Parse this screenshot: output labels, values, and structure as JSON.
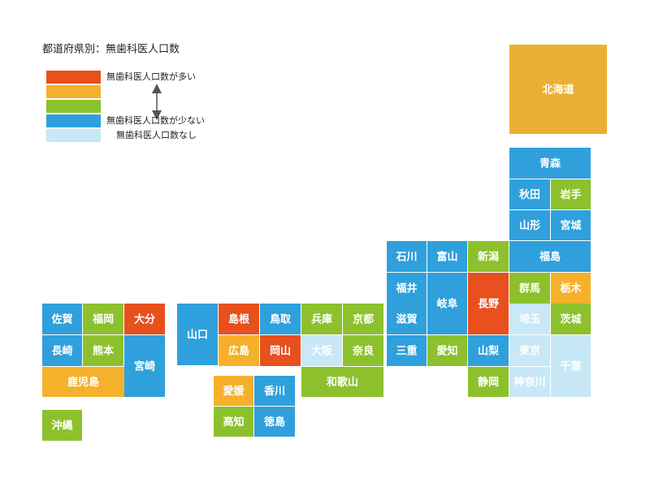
{
  "title": "都道府県別：無歯科医人口数",
  "legend": [
    {
      "label": "無歯科医人口数が多い",
      "color": "#e8501e"
    },
    {
      "label": null,
      "color": "#f5b12b"
    },
    {
      "label": null,
      "color": "#8cc12d"
    },
    {
      "label": "無歯科医人口数が少ない",
      "color": "#2fa0dc"
    },
    {
      "label": "無歯科医人口数なし",
      "color": "#c8e8f8"
    }
  ],
  "prefectures": [
    {
      "name": "北海道",
      "color": "#ebb033"
    },
    {
      "name": "青森",
      "color": "#2fa0dc"
    },
    {
      "name": "秋田",
      "color": "#2fa0dc"
    },
    {
      "name": "岩手",
      "color": "#8cc12d"
    },
    {
      "name": "山形",
      "color": "#2fa0dc"
    },
    {
      "name": "宮城",
      "color": "#2fa0dc"
    },
    {
      "name": "石川",
      "color": "#2fa0dc"
    },
    {
      "name": "富山",
      "color": "#2fa0dc"
    },
    {
      "name": "新潟",
      "color": "#8cc12d"
    },
    {
      "name": "福島",
      "color": "#2fa0dc"
    },
    {
      "name": "福井",
      "color": "#2fa0dc"
    },
    {
      "name": "岐阜",
      "color": "#2fa0dc"
    },
    {
      "name": "長野",
      "color": "#e8501e"
    },
    {
      "name": "群馬",
      "color": "#8cc12d"
    },
    {
      "name": "栃木",
      "color": "#f5b12b"
    },
    {
      "name": "佐賀",
      "color": "#2fa0dc"
    },
    {
      "name": "福岡",
      "color": "#8cc12d"
    },
    {
      "name": "大分",
      "color": "#e8501e"
    },
    {
      "name": "山口",
      "color": "#2fa0dc"
    },
    {
      "name": "島根",
      "color": "#e8501e"
    },
    {
      "name": "鳥取",
      "color": "#2fa0dc"
    },
    {
      "name": "兵庫",
      "color": "#8cc12d"
    },
    {
      "name": "京都",
      "color": "#8cc12d"
    },
    {
      "name": "滋賀",
      "color": "#2fa0dc"
    },
    {
      "name": "埼玉",
      "color": "#c8e8f8"
    },
    {
      "name": "茨城",
      "color": "#8cc12d"
    },
    {
      "name": "長崎",
      "color": "#2fa0dc"
    },
    {
      "name": "熊本",
      "color": "#8cc12d"
    },
    {
      "name": "宮崎",
      "color": "#2fa0dc"
    },
    {
      "name": "広島",
      "color": "#f5b12b"
    },
    {
      "name": "岡山",
      "color": "#e8501e"
    },
    {
      "name": "大阪",
      "color": "#c8e8f8"
    },
    {
      "name": "奈良",
      "color": "#8cc12d"
    },
    {
      "name": "三重",
      "color": "#2fa0dc"
    },
    {
      "name": "愛知",
      "color": "#8cc12d"
    },
    {
      "name": "山梨",
      "color": "#2fa0dc"
    },
    {
      "name": "東京",
      "color": "#c8e8f8"
    },
    {
      "name": "千葉",
      "color": "#c8e8f8"
    },
    {
      "name": "鹿児島",
      "color": "#f5b12b"
    },
    {
      "name": "和歌山",
      "color": "#8cc12d"
    },
    {
      "name": "静岡",
      "color": "#8cc12d"
    },
    {
      "name": "神奈川",
      "color": "#c8e8f8"
    },
    {
      "name": "愛媛",
      "color": "#f5b12b"
    },
    {
      "name": "香川",
      "color": "#2fa0dc"
    },
    {
      "name": "高知",
      "color": "#8cc12d"
    },
    {
      "name": "徳島",
      "color": "#2fa0dc"
    },
    {
      "name": "沖縄",
      "color": "#8cc12d"
    }
  ]
}
